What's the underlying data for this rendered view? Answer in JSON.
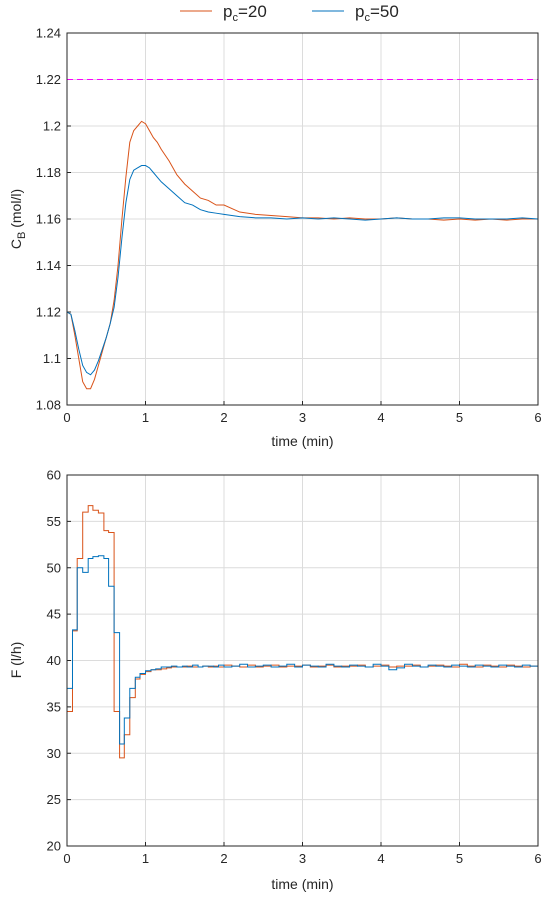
{
  "chart_data": [
    {
      "type": "line",
      "xlabel": "time (min)",
      "ylabel_main": "C",
      "ylabel_sub": "B",
      "ylabel_unit": " (mol/l)",
      "xlim": [
        0,
        6
      ],
      "ylim": [
        1.08,
        1.24
      ],
      "xticks": [
        "0",
        "1",
        "2",
        "3",
        "4",
        "5",
        "6"
      ],
      "yticks": [
        "1.08",
        "1.1",
        "1.12",
        "1.14",
        "1.16",
        "1.18",
        "1.2",
        "1.22",
        "1.24"
      ],
      "grid": true,
      "legend": {
        "placement": "top",
        "entries": [
          {
            "main": "p",
            "sub": "c",
            "rest": "=20",
            "color": "#D95319"
          },
          {
            "main": "p",
            "sub": "c",
            "rest": "=50",
            "color": "#0072BD"
          }
        ]
      },
      "reference_line": {
        "y": 1.22,
        "color": "#FF00FF",
        "style": "dashed"
      },
      "series": [
        {
          "color": "#D95319",
          "x": [
            0,
            0.05,
            0.1,
            0.15,
            0.2,
            0.25,
            0.3,
            0.35,
            0.4,
            0.45,
            0.5,
            0.55,
            0.6,
            0.65,
            0.7,
            0.75,
            0.8,
            0.85,
            0.9,
            0.95,
            1.0,
            1.05,
            1.1,
            1.15,
            1.2,
            1.3,
            1.4,
            1.5,
            1.6,
            1.7,
            1.8,
            1.9,
            2.0,
            2.2,
            2.4,
            2.6,
            2.8,
            3.0,
            3.2,
            3.4,
            3.6,
            3.8,
            4.0,
            4.2,
            4.4,
            4.6,
            4.8,
            5.0,
            5.2,
            5.4,
            5.6,
            5.8,
            6.0
          ],
          "y": [
            1.12,
            1.119,
            1.11,
            1.1,
            1.09,
            1.087,
            1.087,
            1.091,
            1.097,
            1.103,
            1.109,
            1.115,
            1.125,
            1.14,
            1.16,
            1.178,
            1.193,
            1.198,
            1.2,
            1.202,
            1.201,
            1.198,
            1.195,
            1.193,
            1.19,
            1.185,
            1.179,
            1.175,
            1.172,
            1.169,
            1.168,
            1.166,
            1.166,
            1.163,
            1.162,
            1.1615,
            1.161,
            1.1605,
            1.1605,
            1.16,
            1.1605,
            1.16,
            1.16,
            1.1605,
            1.16,
            1.16,
            1.1595,
            1.16,
            1.1595,
            1.16,
            1.1595,
            1.16,
            1.16
          ]
        },
        {
          "color": "#0072BD",
          "x": [
            0,
            0.05,
            0.1,
            0.15,
            0.2,
            0.25,
            0.3,
            0.35,
            0.4,
            0.45,
            0.5,
            0.55,
            0.6,
            0.65,
            0.7,
            0.75,
            0.8,
            0.85,
            0.9,
            0.95,
            1.0,
            1.05,
            1.1,
            1.15,
            1.2,
            1.3,
            1.4,
            1.5,
            1.6,
            1.7,
            1.8,
            1.9,
            2.0,
            2.2,
            2.4,
            2.6,
            2.8,
            3.0,
            3.2,
            3.4,
            3.6,
            3.8,
            4.0,
            4.2,
            4.4,
            4.6,
            4.8,
            5.0,
            5.2,
            5.4,
            5.6,
            5.8,
            6.0
          ],
          "y": [
            1.12,
            1.119,
            1.112,
            1.104,
            1.097,
            1.094,
            1.093,
            1.095,
            1.099,
            1.104,
            1.109,
            1.115,
            1.122,
            1.135,
            1.152,
            1.167,
            1.177,
            1.181,
            1.182,
            1.183,
            1.183,
            1.182,
            1.18,
            1.178,
            1.176,
            1.173,
            1.17,
            1.167,
            1.166,
            1.164,
            1.163,
            1.1625,
            1.162,
            1.161,
            1.1605,
            1.1605,
            1.16,
            1.1605,
            1.16,
            1.1605,
            1.16,
            1.1595,
            1.16,
            1.1605,
            1.16,
            1.16,
            1.1605,
            1.1605,
            1.16,
            1.16,
            1.16,
            1.1605,
            1.16
          ]
        }
      ]
    },
    {
      "type": "line",
      "step": true,
      "xlabel": "time (min)",
      "ylabel": "F (l/h)",
      "xlim": [
        0,
        6
      ],
      "ylim": [
        20,
        60
      ],
      "xticks": [
        "0",
        "1",
        "2",
        "3",
        "4",
        "5",
        "6"
      ],
      "yticks": [
        "20",
        "25",
        "30",
        "35",
        "40",
        "45",
        "50",
        "55",
        "60"
      ],
      "grid": true,
      "series": [
        {
          "color": "#D95319",
          "x": [
            0,
            0.07,
            0.13,
            0.2,
            0.27,
            0.33,
            0.4,
            0.47,
            0.53,
            0.6,
            0.67,
            0.73,
            0.8,
            0.87,
            0.93,
            1.0,
            1.07,
            1.13,
            1.2,
            1.27,
            1.33,
            1.4,
            1.47,
            1.53,
            1.6,
            1.67,
            1.73,
            1.8,
            1.87,
            1.93,
            2.0,
            2.1,
            2.2,
            2.3,
            2.4,
            2.5,
            2.6,
            2.7,
            2.8,
            2.9,
            3.0,
            3.1,
            3.2,
            3.3,
            3.4,
            3.5,
            3.6,
            3.7,
            3.8,
            3.9,
            4.0,
            4.1,
            4.2,
            4.3,
            4.4,
            4.5,
            4.6,
            4.7,
            4.8,
            4.9,
            5.0,
            5.1,
            5.2,
            5.3,
            5.4,
            5.5,
            5.6,
            5.7,
            5.8,
            5.9,
            6.0
          ],
          "y": [
            34.5,
            43.2,
            51.0,
            56.0,
            56.7,
            56.2,
            55.9,
            54.0,
            53.8,
            34.5,
            29.5,
            32.0,
            36.0,
            38.0,
            38.5,
            38.8,
            39.0,
            39.0,
            39.1,
            39.2,
            39.3,
            39.3,
            39.3,
            39.4,
            39.3,
            39.3,
            39.4,
            39.3,
            39.4,
            39.3,
            39.5,
            39.4,
            39.3,
            39.5,
            39.3,
            39.4,
            39.5,
            39.3,
            39.4,
            39.4,
            39.5,
            39.3,
            39.4,
            39.5,
            39.3,
            39.4,
            39.4,
            39.5,
            39.3,
            39.4,
            39.5,
            39.3,
            39.4,
            39.4,
            39.5,
            39.3,
            39.4,
            39.5,
            39.4,
            39.3,
            39.6,
            39.4,
            39.3,
            39.5,
            39.4,
            39.3,
            39.5,
            39.4,
            39.3,
            39.4,
            39.4
          ]
        },
        {
          "color": "#0072BD",
          "x": [
            0,
            0.07,
            0.13,
            0.2,
            0.27,
            0.33,
            0.4,
            0.47,
            0.53,
            0.6,
            0.67,
            0.73,
            0.8,
            0.87,
            0.93,
            1.0,
            1.07,
            1.13,
            1.2,
            1.27,
            1.33,
            1.4,
            1.47,
            1.53,
            1.6,
            1.67,
            1.73,
            1.8,
            1.87,
            1.93,
            2.0,
            2.1,
            2.2,
            2.3,
            2.4,
            2.5,
            2.6,
            2.7,
            2.8,
            2.9,
            3.0,
            3.1,
            3.2,
            3.3,
            3.4,
            3.5,
            3.6,
            3.7,
            3.8,
            3.9,
            4.0,
            4.1,
            4.2,
            4.3,
            4.4,
            4.5,
            4.6,
            4.7,
            4.8,
            4.9,
            5.0,
            5.1,
            5.2,
            5.3,
            5.4,
            5.5,
            5.6,
            5.7,
            5.8,
            5.9,
            6.0
          ],
          "y": [
            37.0,
            43.3,
            50.0,
            49.5,
            51.0,
            51.2,
            51.3,
            51.0,
            48.0,
            43.0,
            31.0,
            33.8,
            37.0,
            38.2,
            38.6,
            38.9,
            39.0,
            39.1,
            39.3,
            39.3,
            39.4,
            39.3,
            39.4,
            39.3,
            39.5,
            39.3,
            39.4,
            39.4,
            39.3,
            39.5,
            39.3,
            39.4,
            39.6,
            39.3,
            39.4,
            39.5,
            39.3,
            39.4,
            39.6,
            39.3,
            39.5,
            39.4,
            39.3,
            39.6,
            39.4,
            39.3,
            39.5,
            39.4,
            39.3,
            39.6,
            39.4,
            39.0,
            39.2,
            39.6,
            39.4,
            39.3,
            39.5,
            39.4,
            39.3,
            39.5,
            39.4,
            39.3,
            39.5,
            39.4,
            39.3,
            39.5,
            39.4,
            39.3,
            39.5,
            39.4,
            39.4
          ]
        }
      ]
    }
  ]
}
